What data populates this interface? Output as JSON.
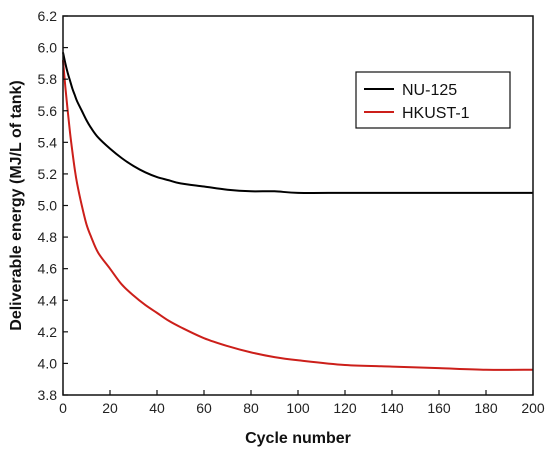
{
  "chart_data": {
    "type": "line",
    "xlabel": "Cycle number",
    "ylabel": "Deliverable energy (MJ/L of tank)",
    "xlim": [
      0,
      200
    ],
    "ylim": [
      3.8,
      6.2
    ],
    "xticks": [
      0,
      20,
      40,
      60,
      80,
      100,
      120,
      140,
      160,
      180,
      200
    ],
    "yticks": [
      3.8,
      4.0,
      4.2,
      4.4,
      4.6,
      4.8,
      5.0,
      5.2,
      5.4,
      5.6,
      5.8,
      6.0,
      6.2
    ],
    "legend_position": "top-right",
    "grid": false,
    "series": [
      {
        "name": "NU-125",
        "color": "#000000",
        "x": [
          0,
          1,
          2,
          3,
          4,
          5,
          6,
          8,
          10,
          12,
          15,
          20,
          25,
          30,
          35,
          40,
          45,
          50,
          60,
          70,
          80,
          90,
          100,
          120,
          140,
          160,
          180,
          200
        ],
        "y": [
          5.97,
          5.9,
          5.84,
          5.79,
          5.74,
          5.7,
          5.66,
          5.6,
          5.54,
          5.49,
          5.43,
          5.36,
          5.3,
          5.25,
          5.21,
          5.18,
          5.16,
          5.14,
          5.12,
          5.1,
          5.09,
          5.09,
          5.08,
          5.08,
          5.08,
          5.08,
          5.08,
          5.08
        ]
      },
      {
        "name": "HKUST-1",
        "color": "#cc1f1a",
        "x": [
          0,
          1,
          2,
          3,
          4,
          5,
          6,
          8,
          10,
          12,
          15,
          20,
          25,
          30,
          35,
          40,
          45,
          50,
          60,
          70,
          80,
          90,
          100,
          120,
          140,
          160,
          180,
          200
        ],
        "y": [
          5.92,
          5.75,
          5.6,
          5.46,
          5.34,
          5.23,
          5.14,
          5.0,
          4.88,
          4.8,
          4.7,
          4.6,
          4.5,
          4.43,
          4.37,
          4.32,
          4.27,
          4.23,
          4.16,
          4.11,
          4.07,
          4.04,
          4.02,
          3.99,
          3.98,
          3.97,
          3.96,
          3.96
        ]
      }
    ]
  }
}
